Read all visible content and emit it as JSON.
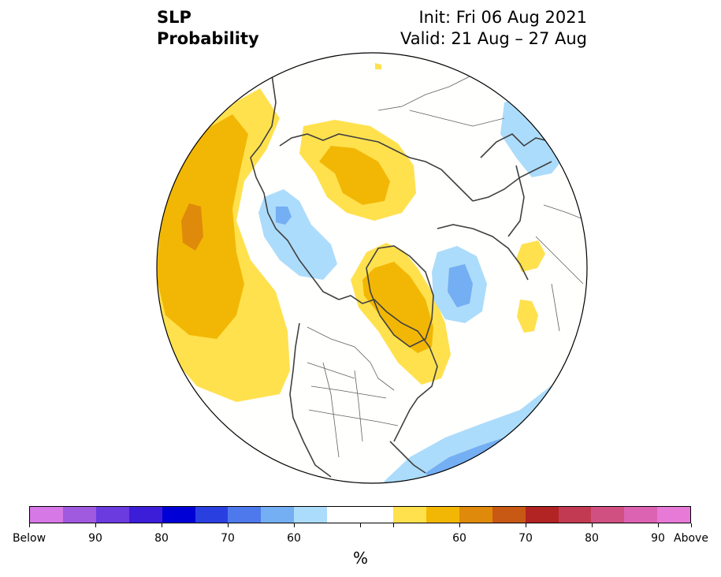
{
  "title": {
    "left_line1": "SLP",
    "left_line2": "Probability",
    "right_line1": "Init: Fri 06 Aug 2021",
    "right_line2": "Valid: 21 Aug – 27 Aug"
  },
  "colorbar": {
    "unit": "%",
    "colors": [
      "#d678e6",
      "#a05ae0",
      "#6b3be0",
      "#3c1ed9",
      "#0000d6",
      "#2a3fe0",
      "#4e79ec",
      "#74aef3",
      "#acdcfb",
      "#ffffff",
      "#ffffff",
      "#ffe14e",
      "#f2b705",
      "#df8a0b",
      "#c85914",
      "#b22323",
      "#c23a52",
      "#d15082",
      "#dc62b2",
      "#e67ad6"
    ],
    "tick_labels": [
      "Below",
      "90",
      "80",
      "70",
      "60",
      "",
      "",
      "60",
      "70",
      "80",
      "90",
      "Above"
    ]
  },
  "colors": {
    "below_60": "#acdcfb",
    "below_70": "#74aef3",
    "above_60": "#ffe14e",
    "above_70": "#f2b705",
    "above_80": "#df8a0b",
    "coast": "#404040",
    "ocean": "#fffffb"
  }
}
